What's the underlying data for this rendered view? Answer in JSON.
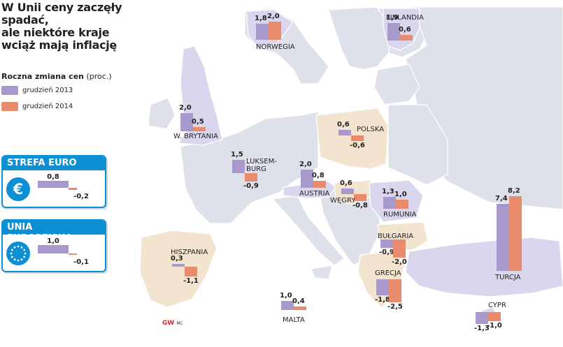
{
  "title": [
    "W Unii ceny zaczęły spadać,",
    "ale niektóre kraje",
    "wciąż mają inflację"
  ],
  "legend": {
    "heading_bold": "Roczna zmiana cen",
    "heading_rest": " (proc.)",
    "items": [
      {
        "label": "grudzień 2013",
        "color": "#a898cc"
      },
      {
        "label": "grudzień 2014",
        "color": "#ea8b6e"
      }
    ]
  },
  "summary_boxes": [
    {
      "title": "STREFA EURO",
      "icon": "euro-sign-icon",
      "v2013": "0,8",
      "v2014": "-0,2"
    },
    {
      "title": "UNIA EUROPEJSKA",
      "icon": "eu-stars-icon",
      "v2013": "1,0",
      "v2014": "-0,1"
    }
  ],
  "credit": {
    "logo": "GW",
    "author": "MC"
  },
  "colors": {
    "bar_2013": "#a898cc",
    "bar_2014": "#ea8b6e",
    "accent": "#0d8fd3",
    "land": "#dfe1ea",
    "land_highlight_purple": "#dad6ee",
    "land_highlight_beige": "#f3e4cf"
  },
  "chart_data": {
    "type": "bar",
    "series_names": [
      "grudzień 2013",
      "grudzień 2014"
    ],
    "countries": [
      {
        "name": "NORWEGIA",
        "v2013": 1.8,
        "v2014": 2.0,
        "label2013": "1,8",
        "label2014": "2,0"
      },
      {
        "name": "FINLANDIA",
        "v2013": 1.9,
        "v2014": 0.6,
        "label2013": "1,9",
        "label2014": "0,6"
      },
      {
        "name": "W. BRYTANIA",
        "v2013": 2.0,
        "v2014": 0.5,
        "label2013": "2,0",
        "label2014": "0,5"
      },
      {
        "name": "POLSKA",
        "v2013": 0.6,
        "v2014": -0.6,
        "label2013": "0,6",
        "label2014": "-0,6"
      },
      {
        "name": "LUKSEM-\nBURG",
        "v2013": 1.5,
        "v2014": -0.9,
        "label2013": "1,5",
        "label2014": "-0,9"
      },
      {
        "name": "AUSTRIA",
        "v2013": 2.0,
        "v2014": 0.8,
        "label2013": "2,0",
        "label2014": "0,8"
      },
      {
        "name": "WĘGRY",
        "v2013": 0.6,
        "v2014": -0.8,
        "label2013": "0,6",
        "label2014": "-0,8"
      },
      {
        "name": "RUMUNIA",
        "v2013": 1.3,
        "v2014": 1.0,
        "label2013": "1,3",
        "label2014": "1,0"
      },
      {
        "name": "BUŁGARIA",
        "v2013": -0.9,
        "v2014": -2.0,
        "label2013": "-0,9",
        "label2014": "-2,0"
      },
      {
        "name": "HISZPANIA",
        "v2013": 0.3,
        "v2014": -1.1,
        "label2013": "0,3",
        "label2014": "-1,1"
      },
      {
        "name": "GRECJA",
        "v2013": -1.8,
        "v2014": -2.5,
        "label2013": "-1,8",
        "label2014": "-2,5"
      },
      {
        "name": "TURCJA",
        "v2013": 7.4,
        "v2014": 8.2,
        "label2013": "7,4",
        "label2014": "8,2"
      },
      {
        "name": "MALTA",
        "v2013": 1.0,
        "v2014": 0.4,
        "label2013": "1,0",
        "label2014": "0,4"
      },
      {
        "name": "CYPR",
        "v2013": -1.3,
        "v2014": -1.0,
        "label2013": "-1,3",
        "label2014": "-1,0"
      }
    ]
  }
}
